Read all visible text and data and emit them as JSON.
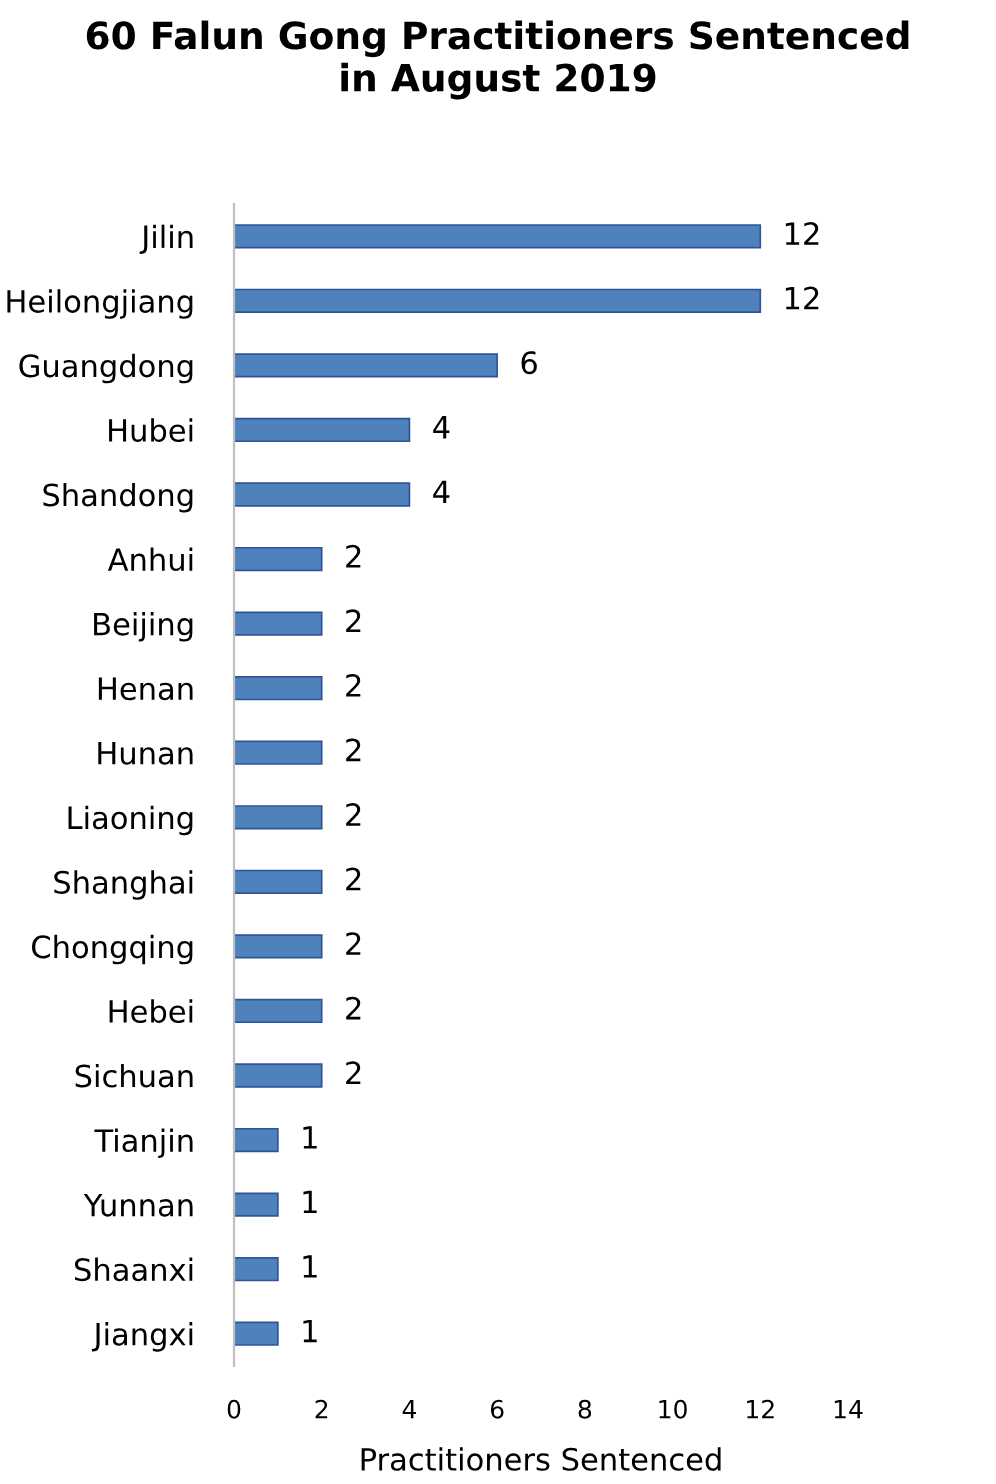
{
  "chart_data": {
    "type": "bar",
    "orientation": "horizontal",
    "title": "60 Falun Gong Practitioners Sentenced\nin August 2019",
    "xlabel": "Practitioners Sentenced",
    "categories": [
      "Jilin",
      "Heilongjiang",
      "Guangdong",
      "Hubei",
      "Shandong",
      "Anhui",
      "Beijing",
      "Henan",
      "Hunan",
      "Liaoning",
      "Shanghai",
      "Chongqing",
      "Hebei",
      "Sichuan",
      "Tianjin",
      "Yunnan",
      "Shaanxi",
      "Jiangxi"
    ],
    "values": [
      12,
      12,
      6,
      4,
      4,
      2,
      2,
      2,
      2,
      2,
      2,
      2,
      2,
      2,
      1,
      1,
      1,
      1
    ],
    "color": "#4f81bd",
    "data_labels": true,
    "xlim": [
      0,
      14
    ],
    "xticks": [
      0,
      2,
      4,
      6,
      8,
      10,
      12,
      14
    ],
    "grid": false,
    "legend": false
  }
}
